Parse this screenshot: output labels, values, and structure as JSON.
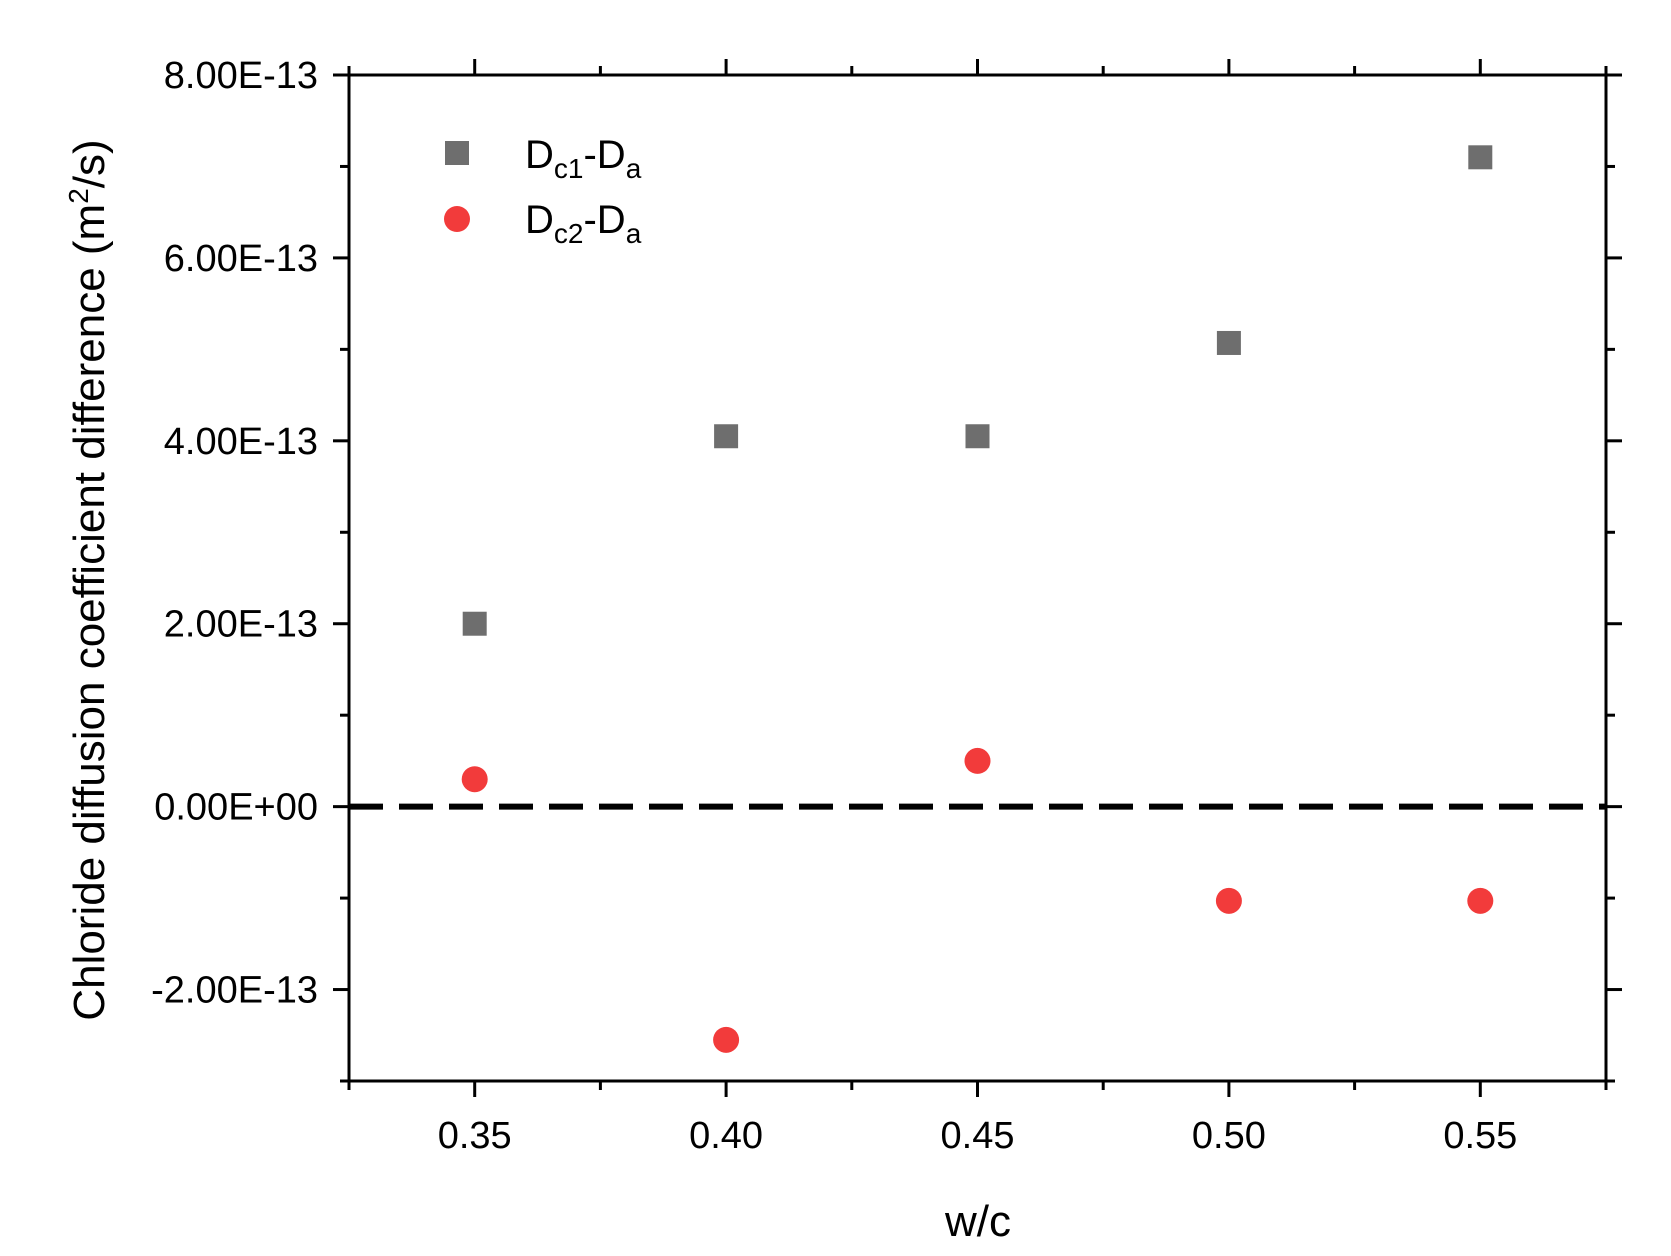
{
  "chart_data": {
    "type": "scatter",
    "xlabel": "w/c",
    "ylabel": "Chloride diffusion coefficient difference (m2/s)",
    "ylabel_parts": {
      "main": "Chloride diffusion coefficient difference (m",
      "sup": "2",
      "tail": "/s)"
    },
    "xlim": [
      0.325,
      0.575
    ],
    "ylim": [
      -3e-13,
      8e-13
    ],
    "x_ticks": [
      0.35,
      0.4,
      0.45,
      0.5,
      0.55
    ],
    "x_tick_labels": [
      "0.35",
      "0.40",
      "0.45",
      "0.50",
      "0.55"
    ],
    "x_minor_ticks": [
      0.325,
      0.375,
      0.425,
      0.475,
      0.525,
      0.575
    ],
    "y_ticks": [
      -2e-13,
      0,
      2e-13,
      4e-13,
      6e-13,
      8e-13
    ],
    "y_tick_labels": [
      "-2.00E-13",
      "0.00E+00",
      "2.00E-13",
      "4.00E-13",
      "6.00E-13",
      "8.00E-13"
    ],
    "y_minor_ticks": [
      -3e-13,
      -1e-13,
      1e-13,
      3e-13,
      5e-13,
      7e-13
    ],
    "reference_line": {
      "y": 0,
      "style": "dashed",
      "color": "#000000"
    },
    "grid": false,
    "legend_position": "top-left",
    "series": [
      {
        "name": "Dc1-Da",
        "name_parts": {
          "base": "D",
          "sub": "c1",
          "mid": "-D",
          "sub2": "a"
        },
        "marker": "square",
        "color": "#6e6e6e",
        "x": [
          0.35,
          0.4,
          0.45,
          0.5,
          0.55
        ],
        "y": [
          2e-13,
          4.05e-13,
          4.05e-13,
          5.07e-13,
          7.1e-13
        ]
      },
      {
        "name": "Dc2-Da",
        "name_parts": {
          "base": "D",
          "sub": "c2",
          "mid": "-D",
          "sub2": "a"
        },
        "marker": "circle",
        "color": "#f23b3b",
        "x": [
          0.35,
          0.4,
          0.45,
          0.5,
          0.55
        ],
        "y": [
          3e-14,
          -2.55e-13,
          5e-14,
          -1.03e-13,
          -1.03e-13
        ]
      }
    ]
  }
}
